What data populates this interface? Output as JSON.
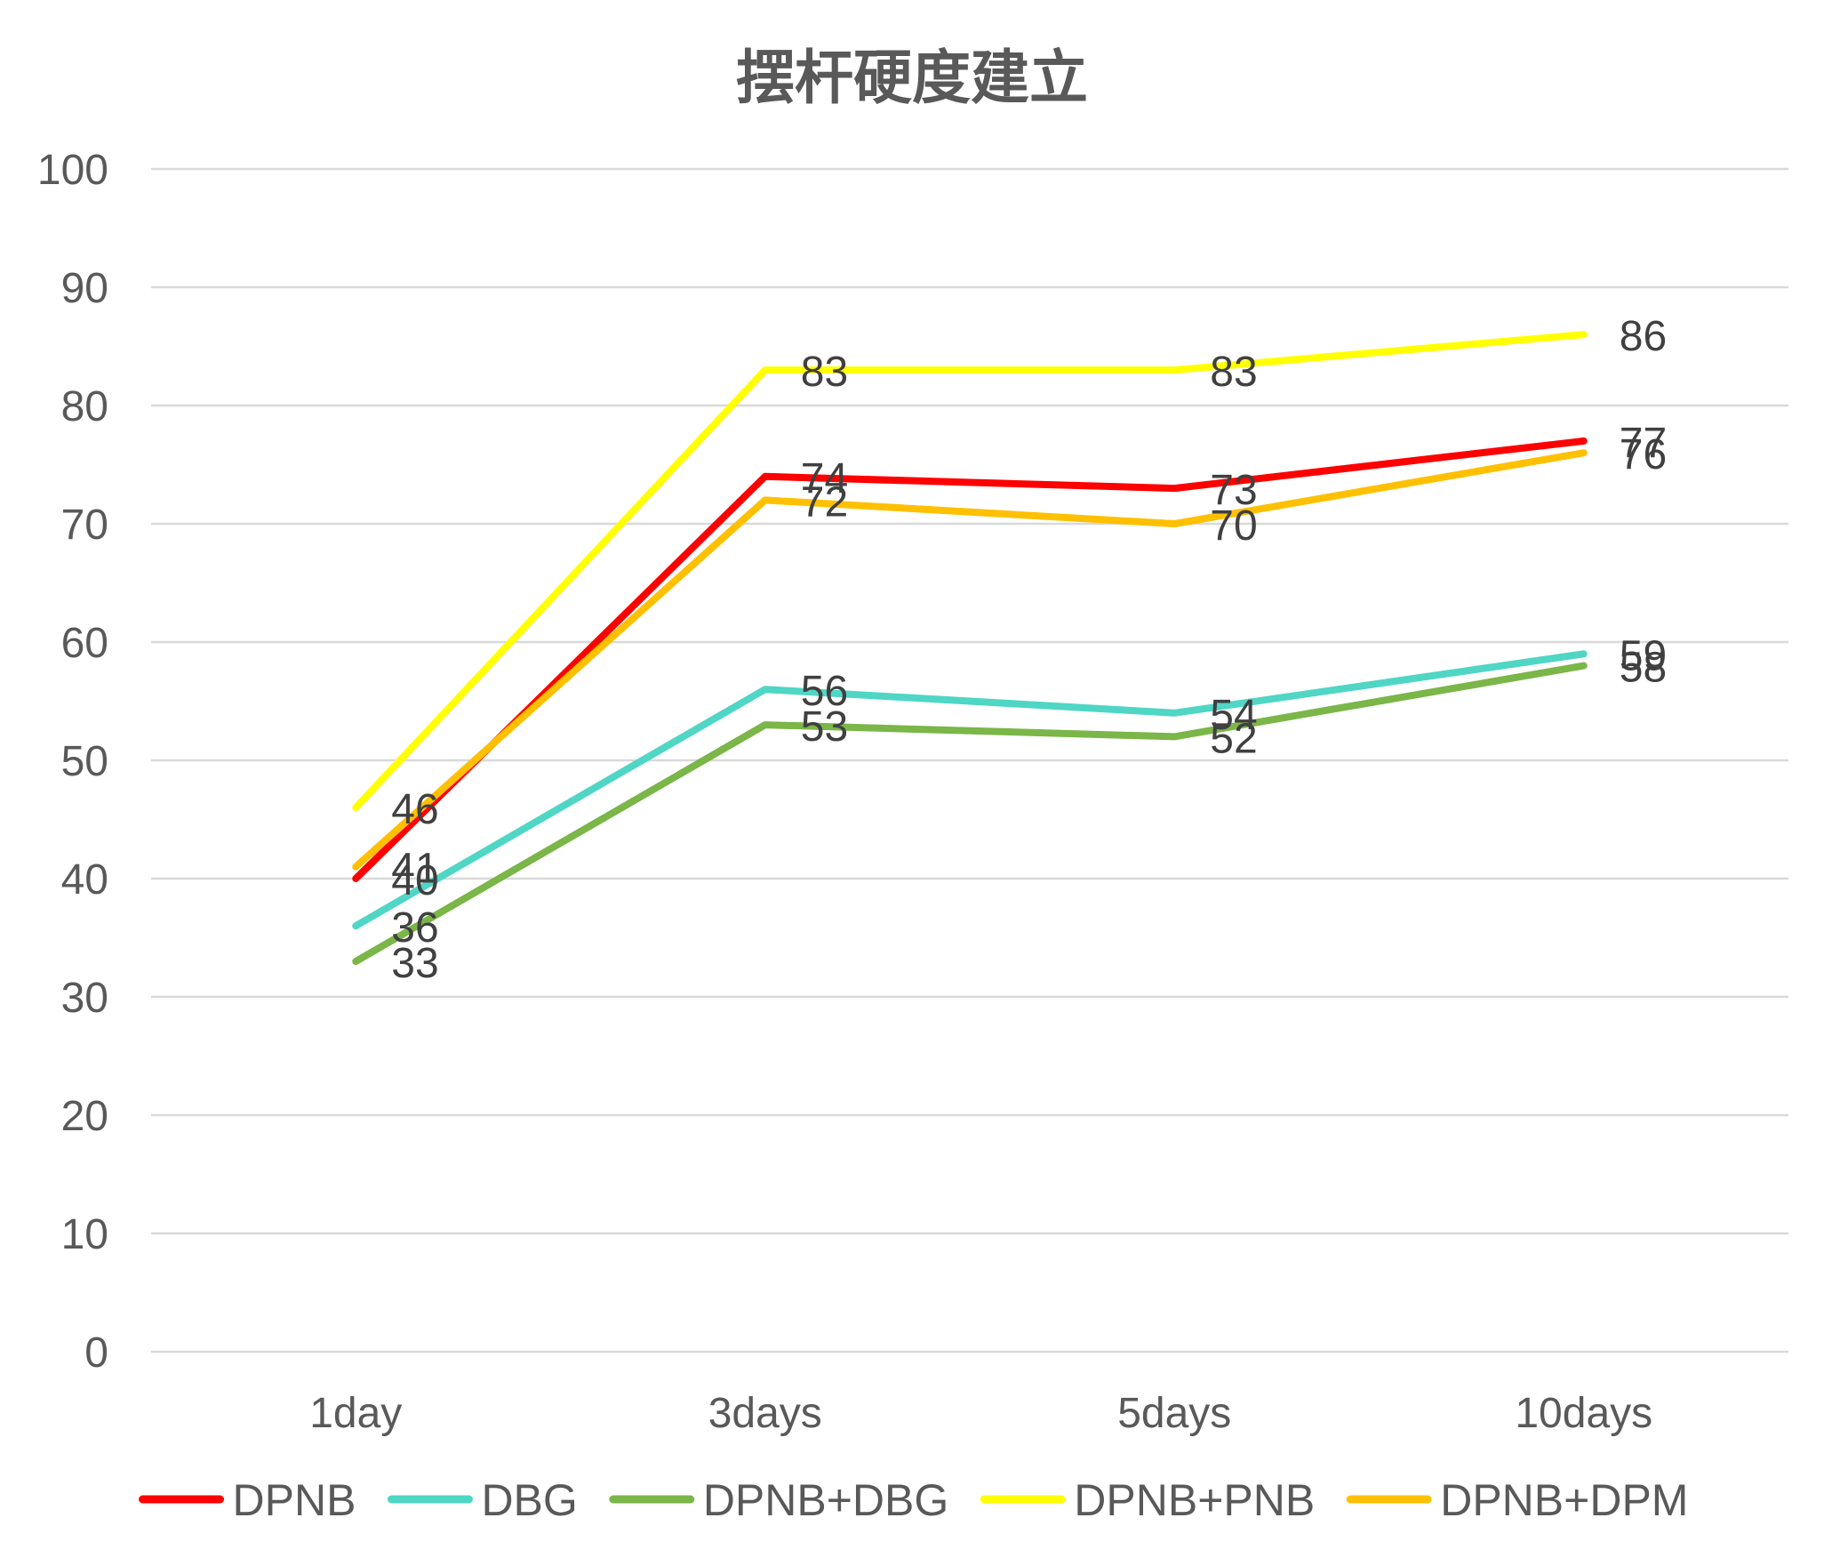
{
  "chart_data": {
    "type": "line",
    "title": "摆杆硬度建立",
    "categories": [
      "1day",
      "3days",
      "5days",
      "10days"
    ],
    "ylim": [
      0,
      100
    ],
    "yticks": [
      0,
      10,
      20,
      30,
      40,
      50,
      60,
      70,
      80,
      90,
      100
    ],
    "xlabel": "",
    "ylabel": "",
    "grid": true,
    "legend_position": "bottom",
    "series": [
      {
        "name": "DPNB",
        "color": "#ff0000",
        "values": [
          40,
          74,
          73,
          77
        ]
      },
      {
        "name": "DBG",
        "color": "#4fd6c5",
        "values": [
          36,
          56,
          54,
          59
        ]
      },
      {
        "name": "DPNB+DBG",
        "color": "#7ab648",
        "values": [
          33,
          53,
          52,
          58
        ]
      },
      {
        "name": "DPNB+PNB",
        "color": "#ffff00",
        "values": [
          46,
          83,
          83,
          86
        ]
      },
      {
        "name": "DPNB+DPM",
        "color": "#ffc000",
        "values": [
          41,
          72,
          70,
          76
        ]
      }
    ]
  }
}
